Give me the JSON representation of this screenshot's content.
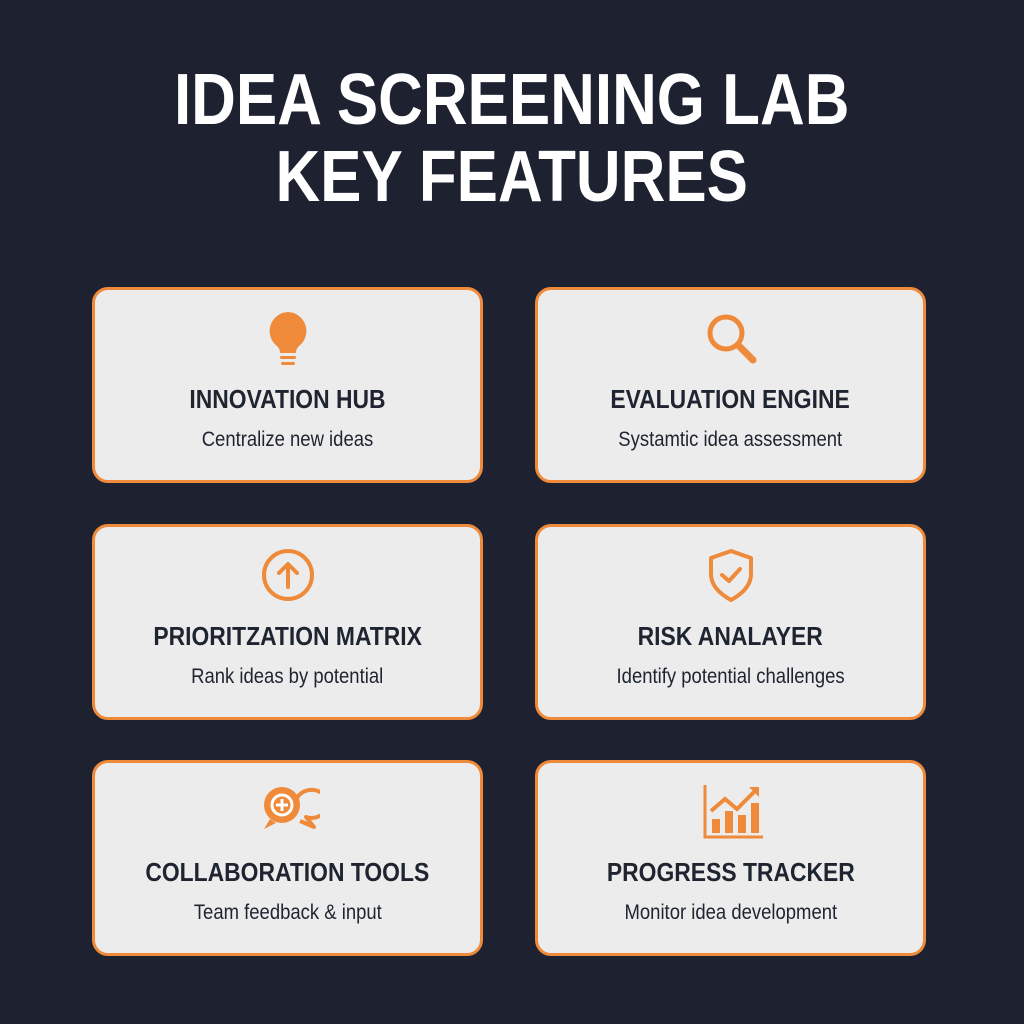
{
  "title": {
    "line1": "IDEA SCREENING LAB",
    "line2": "KEY FEATURES"
  },
  "colors": {
    "background": "#1d2130",
    "accent": "#ee8a3a",
    "card": "#ececec",
    "text": "#1e2430"
  },
  "cards": [
    {
      "icon": "lightbulb-icon",
      "title": "INNOVATION HUB",
      "subtitle": "Centralize new ideas"
    },
    {
      "icon": "magnifier-icon",
      "title": "EVALUATION ENGINE",
      "subtitle": "Systamtic idea assessment"
    },
    {
      "icon": "arrow-up-circle-icon",
      "title": "PRIORITZATION MATRIX",
      "subtitle": "Rank ideas by potential"
    },
    {
      "icon": "shield-check-icon",
      "title": "RISK ANALAYER",
      "subtitle": "Identify potential challenges"
    },
    {
      "icon": "chat-plus-icon",
      "title": "COLLABORATION TOOLS",
      "subtitle": "Team feedback & input"
    },
    {
      "icon": "bar-chart-trend-icon",
      "title": "PROGRESS TRACKER",
      "subtitle": "Monitor idea development"
    }
  ]
}
